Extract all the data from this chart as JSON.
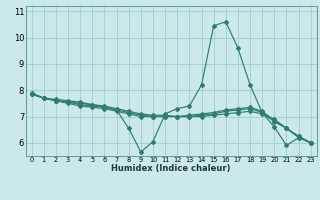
{
  "title": "",
  "xlabel": "Humidex (Indice chaleur)",
  "ylabel": "",
  "bg_color": "#cce9e9",
  "grid_color": "#a0cccc",
  "line_color": "#2e7d6e",
  "xlim": [
    -0.5,
    23.5
  ],
  "ylim": [
    5.5,
    11.2
  ],
  "yticks": [
    6,
    7,
    8,
    9,
    10,
    11
  ],
  "xticks": [
    0,
    1,
    2,
    3,
    4,
    5,
    6,
    7,
    8,
    9,
    10,
    11,
    12,
    13,
    14,
    15,
    16,
    17,
    18,
    19,
    20,
    21,
    22,
    23
  ],
  "lines": [
    [
      7.9,
      7.7,
      7.65,
      7.6,
      7.55,
      7.45,
      7.35,
      7.25,
      6.55,
      5.65,
      6.05,
      7.1,
      7.3,
      7.4,
      8.2,
      10.45,
      10.6,
      9.6,
      8.2,
      7.15,
      6.6,
      5.9,
      6.2,
      6.0
    ],
    [
      7.85,
      7.7,
      7.6,
      7.55,
      7.5,
      7.45,
      7.4,
      7.3,
      7.2,
      7.1,
      7.05,
      7.05,
      7.0,
      7.0,
      7.05,
      7.1,
      7.2,
      7.25,
      7.3,
      7.15,
      6.8,
      6.55,
      6.25,
      6.0
    ],
    [
      7.85,
      7.7,
      7.6,
      7.5,
      7.4,
      7.35,
      7.3,
      7.2,
      7.1,
      7.0,
      7.0,
      7.0,
      7.0,
      7.0,
      7.0,
      7.05,
      7.1,
      7.15,
      7.2,
      7.1,
      6.9,
      6.55,
      6.2,
      6.0
    ],
    [
      7.85,
      7.7,
      7.6,
      7.55,
      7.45,
      7.4,
      7.35,
      7.25,
      7.15,
      7.05,
      7.0,
      7.0,
      7.0,
      7.05,
      7.1,
      7.15,
      7.25,
      7.3,
      7.35,
      7.2,
      6.85,
      6.55,
      6.25,
      6.0
    ]
  ],
  "xlabel_fontsize": 6.0,
  "xtick_fontsize": 4.8,
  "ytick_fontsize": 6.0,
  "marker_size": 2.0,
  "line_width": 0.85
}
